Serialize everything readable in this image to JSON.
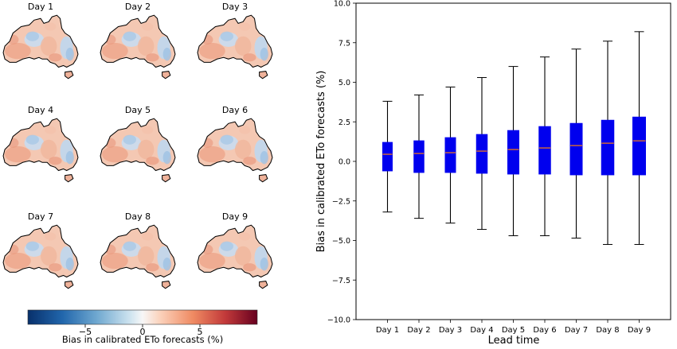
{
  "chart_data": [
    {
      "type": "heatmap",
      "panels": [
        "Day 1",
        "Day 2",
        "Day 3",
        "Day 4",
        "Day 5",
        "Day 6",
        "Day 7",
        "Day 8",
        "Day 9"
      ],
      "colorbar": {
        "label": "Bias in calibrated ETo forecasts (%)",
        "ticks": [
          -5,
          0,
          5
        ],
        "tick_labels": [
          "−5",
          "0",
          "5"
        ],
        "range": [
          -10,
          10
        ],
        "colormap": "RdBu_r"
      }
    },
    {
      "type": "box",
      "categories": [
        "Day 1",
        "Day 2",
        "Day 3",
        "Day 4",
        "Day 5",
        "Day 6",
        "Day 7",
        "Day 8",
        "Day 9"
      ],
      "boxes": [
        {
          "whislo": -3.2,
          "q1": -0.6,
          "med": 0.45,
          "q3": 1.2,
          "whishi": 3.8
        },
        {
          "whislo": -3.6,
          "q1": -0.7,
          "med": 0.5,
          "q3": 1.3,
          "whishi": 4.2
        },
        {
          "whislo": -3.9,
          "q1": -0.7,
          "med": 0.55,
          "q3": 1.5,
          "whishi": 4.7
        },
        {
          "whislo": -4.3,
          "q1": -0.75,
          "med": 0.65,
          "q3": 1.7,
          "whishi": 5.3
        },
        {
          "whislo": -4.7,
          "q1": -0.8,
          "med": 0.75,
          "q3": 1.95,
          "whishi": 6.0
        },
        {
          "whislo": -4.7,
          "q1": -0.8,
          "med": 0.85,
          "q3": 2.2,
          "whishi": 6.6
        },
        {
          "whislo": -4.85,
          "q1": -0.85,
          "med": 1.0,
          "q3": 2.4,
          "whishi": 7.1
        },
        {
          "whislo": -5.25,
          "q1": -0.85,
          "med": 1.15,
          "q3": 2.6,
          "whishi": 7.6
        },
        {
          "whislo": -5.25,
          "q1": -0.85,
          "med": 1.3,
          "q3": 2.8,
          "whishi": 8.2
        }
      ],
      "xlabel": "Lead time",
      "ylabel": "Bias in calibrated ETo forecasts (%)",
      "ylim": [
        -10,
        10
      ],
      "yticks": [
        "−10.0",
        "−7.5",
        "−5.0",
        "−2.5",
        "0.0",
        "2.5",
        "5.0",
        "7.5",
        "10.0"
      ],
      "box_color": "#0000ee",
      "median_color": "#ff7f0e",
      "grid": false
    }
  ]
}
